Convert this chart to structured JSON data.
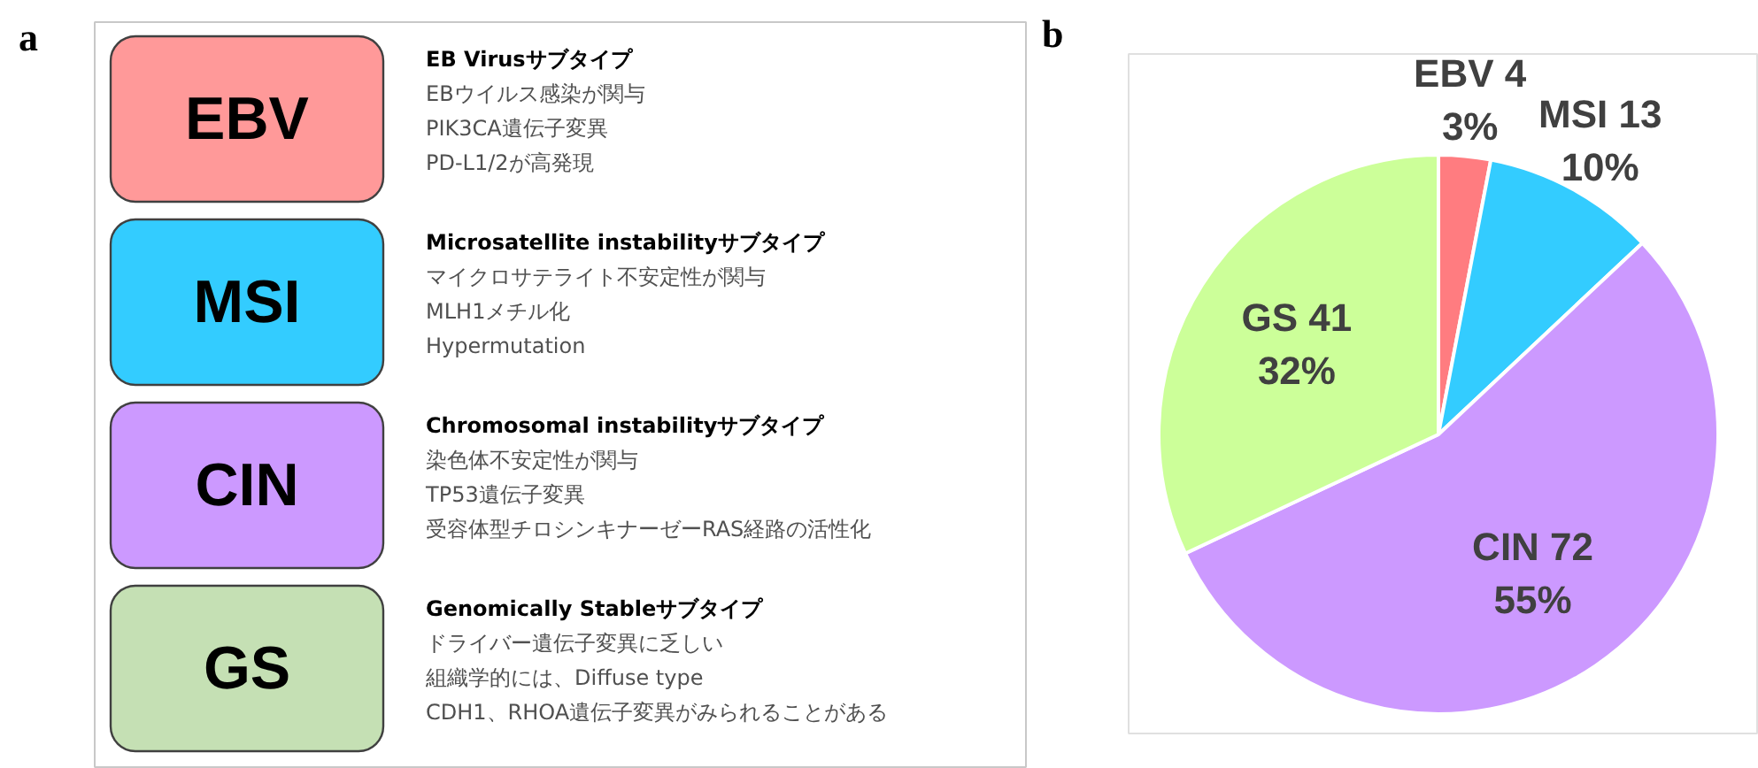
{
  "chart_data": [
    {
      "type": "other",
      "title": "a",
      "colors": [
        "#ff9999",
        "#33ccff",
        "#cc99ff",
        "#c5e0b4"
      ],
      "annotations": [
        "EBV",
        "EB Virusサブタイプ",
        "EBウイルス感染が関与",
        "PIK3CA遺伝子変異",
        "PD-L1/2が高発現",
        "MSI",
        "Microsatellite instabilityサブタイプ",
        "マイクロサテライト不安定性が関与",
        "MLH1メチル化",
        "Hypermutation",
        "CIN",
        "Chromosomal instabilityサブタイプ",
        "染色体不安定性が関与",
        "TP53遺伝子変異",
        "受容体型チロシンキナーゼーRAS経路の活性化",
        "GS",
        "Genomically Stableサブタイプ",
        "ドライバー遺伝子変異に乏しい",
        "組織学的には、Diffuse type",
        "CDH1、RHOA遺伝子変異がみられることがある"
      ]
    },
    {
      "type": "pie",
      "title": "b",
      "categories": [
        "EBV 4",
        "MSI 13",
        "CIN 72",
        "GS 41"
      ],
      "values": [
        3,
        10,
        55,
        32
      ],
      "colors": [
        "#ff7c80",
        "#33ccff",
        "#cc99ff",
        "#ccff99"
      ],
      "value_labels": [
        "3%",
        "10%",
        "55%",
        "32%"
      ]
    }
  ]
}
